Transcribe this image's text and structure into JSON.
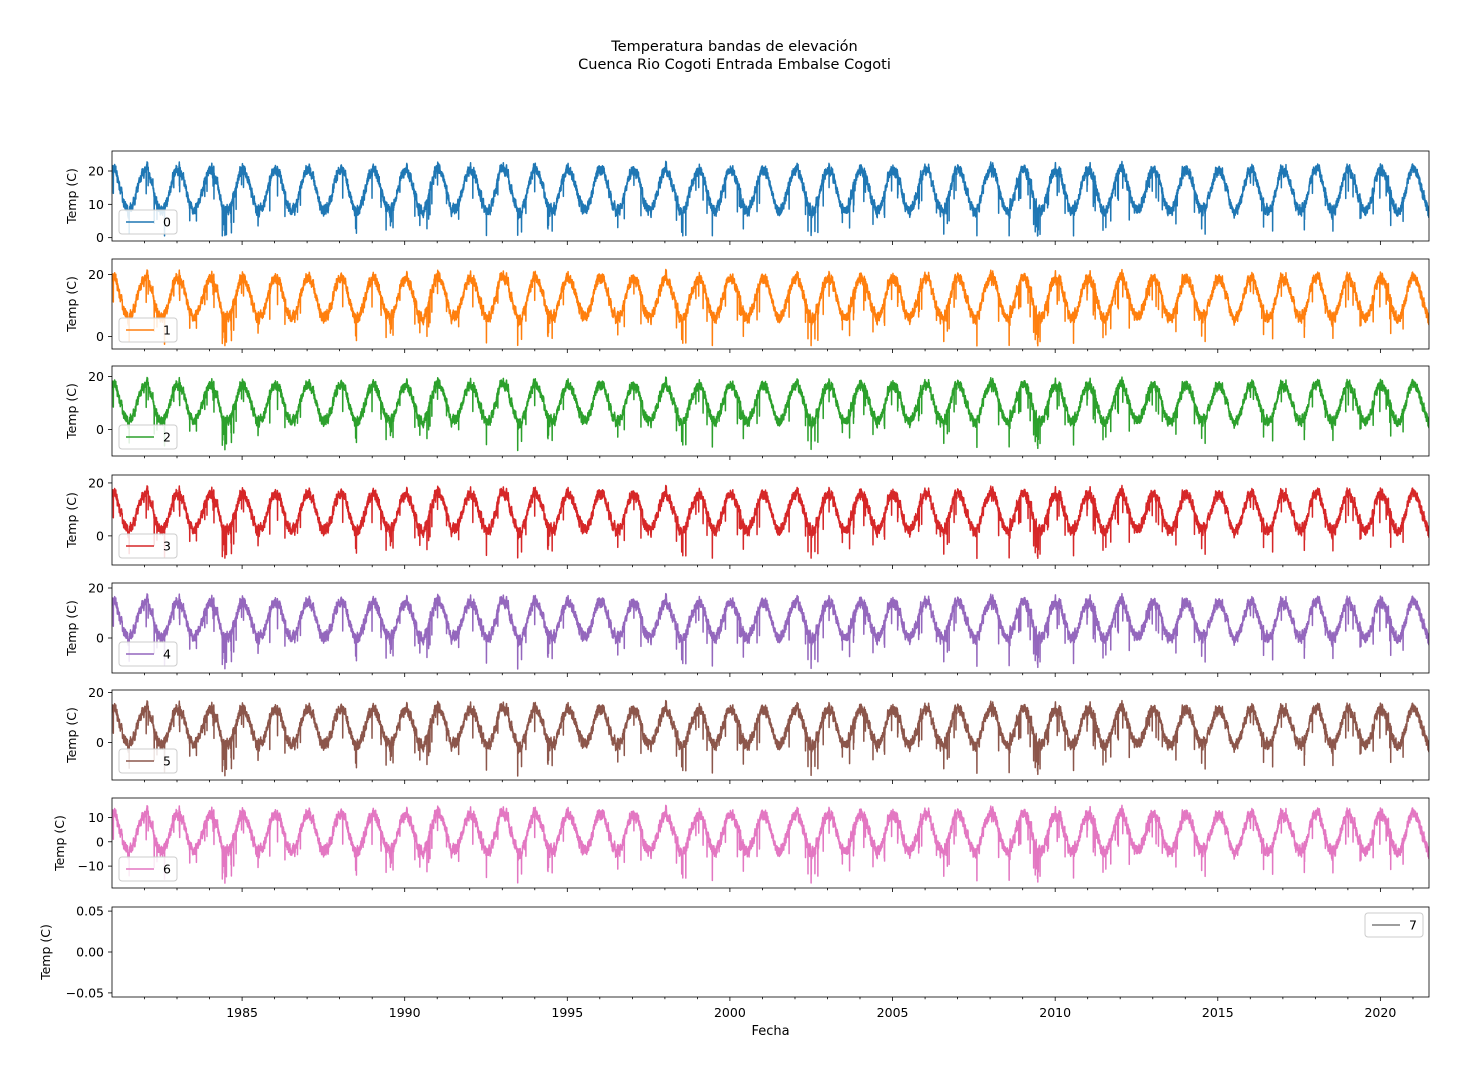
{
  "title": {
    "line1": "Temperatura bandas de elevación",
    "line2": "Cuenca Rio Cogoti Entrada Embalse Cogoti"
  },
  "chart_data": {
    "type": "line",
    "xlabel": "Fecha",
    "x_range": [
      "1981-01-01",
      "2021-06-30"
    ],
    "x_ticks": [
      "1985",
      "1990",
      "1995",
      "2000",
      "2005",
      "2010",
      "2015",
      "2020"
    ],
    "grid": false,
    "series_description": "Daily temperature per elevation band; seasonal cycle with austral summer peaks and winter troughs, approximately reproduced from axis readings",
    "panels": [
      {
        "name": "0",
        "color": "#1f77b4",
        "ylabel": "Temp (C)",
        "ylim": [
          -1,
          26
        ],
        "yticks": [
          0,
          10,
          20
        ],
        "ytick_labels": [
          "0",
          "10",
          "20"
        ],
        "summer_mean": 20.5,
        "winter_mean": 8.0,
        "noise": 2.2,
        "min": 0.5,
        "max": 25.0,
        "legend_loc": "lower left",
        "has_data": true
      },
      {
        "name": "1",
        "color": "#ff7f0e",
        "ylabel": "Temp (C)",
        "ylim": [
          -4,
          25
        ],
        "yticks": [
          0,
          20
        ],
        "ytick_labels": [
          "0",
          "20"
        ],
        "summer_mean": 19.0,
        "winter_mean": 6.0,
        "noise": 2.4,
        "min": -3.0,
        "max": 23.5,
        "legend_loc": "lower left",
        "has_data": true
      },
      {
        "name": "2",
        "color": "#2ca02c",
        "ylabel": "Temp (C)",
        "ylim": [
          -10,
          24
        ],
        "yticks": [
          0,
          20
        ],
        "ytick_labels": [
          "0",
          "20"
        ],
        "summer_mean": 17.0,
        "winter_mean": 3.0,
        "noise": 2.6,
        "min": -8.0,
        "max": 22.0,
        "legend_loc": "lower left",
        "has_data": true
      },
      {
        "name": "3",
        "color": "#d62728",
        "ylabel": "Temp (C)",
        "ylim": [
          -11,
          23
        ],
        "yticks": [
          0,
          20
        ],
        "ytick_labels": [
          "0",
          "20"
        ],
        "summer_mean": 16.0,
        "winter_mean": 2.0,
        "noise": 2.8,
        "min": -8.5,
        "max": 21.5,
        "legend_loc": "lower left",
        "has_data": true
      },
      {
        "name": "4",
        "color": "#9467bd",
        "ylabel": "Temp (C)",
        "ylim": [
          -14,
          22
        ],
        "yticks": [
          0,
          20
        ],
        "ytick_labels": [
          "0",
          "20"
        ],
        "summer_mean": 14.5,
        "winter_mean": 0.0,
        "noise": 3.0,
        "min": -12.5,
        "max": 19.5,
        "legend_loc": "lower left",
        "has_data": true
      },
      {
        "name": "5",
        "color": "#8c564b",
        "ylabel": "Temp (C)",
        "ylim": [
          -15,
          21
        ],
        "yticks": [
          0,
          20
        ],
        "ytick_labels": [
          "0",
          "20"
        ],
        "summer_mean": 13.5,
        "winter_mean": -1.0,
        "noise": 3.0,
        "min": -13.5,
        "max": 18.5,
        "legend_loc": "lower left",
        "has_data": true
      },
      {
        "name": "6",
        "color": "#e377c2",
        "ylabel": "Temp (C)",
        "ylim": [
          -19,
          18
        ],
        "yticks": [
          -10,
          0,
          10
        ],
        "ytick_labels": [
          "−10",
          "0",
          "10"
        ],
        "summer_mean": 11.5,
        "winter_mean": -4.0,
        "noise": 3.2,
        "min": -17.0,
        "max": 16.5,
        "legend_loc": "lower left",
        "has_data": true
      },
      {
        "name": "7",
        "color": "#7f7f7f",
        "ylabel": "Temp (C)",
        "ylim": [
          -0.055,
          0.055
        ],
        "yticks": [
          -0.05,
          0,
          0.05
        ],
        "ytick_labels": [
          "−0.05",
          "0.00",
          "0.05"
        ],
        "legend_loc": "upper right",
        "has_data": false
      }
    ]
  }
}
